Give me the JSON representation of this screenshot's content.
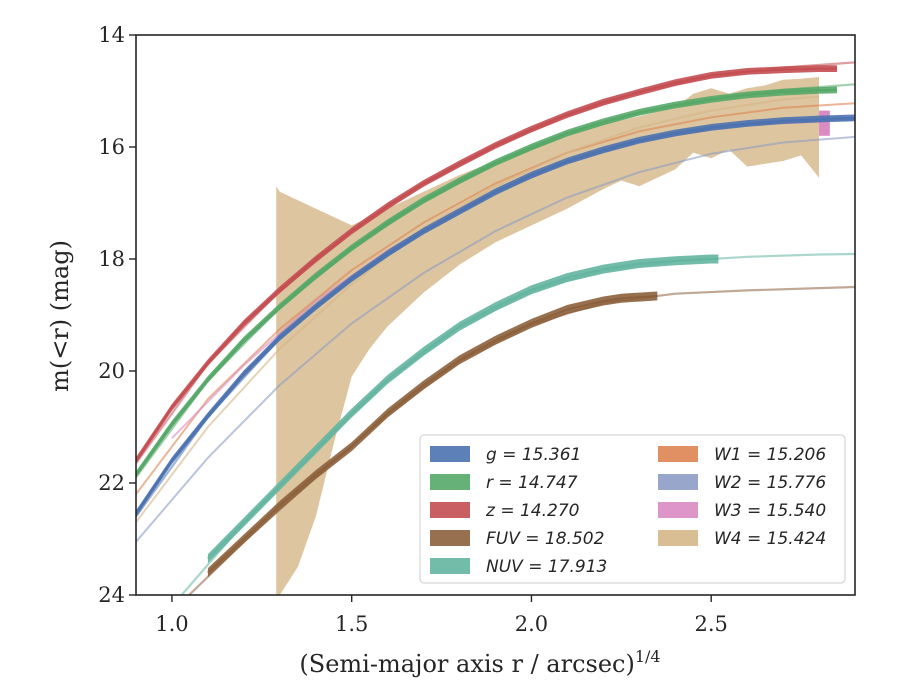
{
  "chart_data": {
    "type": "line",
    "xlabel": "(Semi-major axis r / arcsec)",
    "xlabel_sup": "1/4",
    "ylabel": "m(<r) (mag)",
    "xlim": [
      0.9,
      2.9
    ],
    "ylim": [
      24,
      14
    ],
    "y_inverted": true,
    "x_ticks": [
      1.0,
      1.5,
      2.0,
      2.5
    ],
    "x_tick_labels": [
      "1.0",
      "1.5",
      "2.0",
      "2.5"
    ],
    "y_ticks": [
      14,
      16,
      18,
      20,
      22,
      24
    ],
    "y_tick_labels": [
      "14",
      "16",
      "18",
      "20",
      "22",
      "24"
    ],
    "grid": false,
    "legend_placement": "lower-right",
    "series": [
      {
        "name": "g",
        "legend": "g = 15.361",
        "color": "#4c72b0",
        "band": {
          "x": [
            0.9,
            1.0,
            1.1,
            1.2,
            1.3,
            1.4,
            1.5,
            1.6,
            1.7,
            1.8,
            1.9,
            2.0,
            2.1,
            2.2,
            2.3,
            2.4,
            2.5,
            2.6,
            2.7,
            2.8,
            2.9
          ],
          "y": [
            22.55,
            21.6,
            20.8,
            20.05,
            19.4,
            18.85,
            18.35,
            17.9,
            17.5,
            17.15,
            16.8,
            16.5,
            16.25,
            16.05,
            15.88,
            15.75,
            15.65,
            15.58,
            15.53,
            15.5,
            15.48
          ],
          "half_width": 0.06
        },
        "model": {
          "x": [
            0.9,
            1.1,
            1.3,
            1.5,
            1.7,
            1.9,
            2.1,
            2.3,
            2.5,
            2.7,
            2.9
          ],
          "y": [
            22.6,
            20.82,
            19.42,
            18.37,
            17.52,
            16.82,
            16.27,
            15.9,
            15.67,
            15.55,
            15.5
          ]
        }
      },
      {
        "name": "r",
        "legend": "r = 14.747",
        "color": "#55a868",
        "band": {
          "x": [
            0.9,
            1.0,
            1.1,
            1.2,
            1.3,
            1.4,
            1.5,
            1.6,
            1.7,
            1.8,
            1.9,
            2.0,
            2.1,
            2.2,
            2.3,
            2.4,
            2.5,
            2.6,
            2.7,
            2.8,
            2.85
          ],
          "y": [
            21.85,
            20.95,
            20.15,
            19.45,
            18.85,
            18.3,
            17.8,
            17.35,
            16.95,
            16.6,
            16.28,
            16.0,
            15.75,
            15.55,
            15.38,
            15.25,
            15.15,
            15.07,
            15.02,
            14.99,
            14.98
          ],
          "half_width": 0.06
        },
        "model": {
          "x": [
            0.9,
            1.1,
            1.3,
            1.5,
            1.7,
            1.9,
            2.1,
            2.3,
            2.5,
            2.7,
            2.9
          ],
          "y": [
            21.9,
            20.17,
            18.87,
            17.82,
            16.97,
            16.3,
            15.78,
            15.4,
            15.15,
            14.98,
            14.88
          ]
        }
      },
      {
        "name": "z",
        "legend": "z = 14.270",
        "color": "#c44e52",
        "band": {
          "x": [
            0.9,
            1.0,
            1.1,
            1.2,
            1.3,
            1.4,
            1.5,
            1.6,
            1.7,
            1.8,
            1.9,
            2.0,
            2.1,
            2.2,
            2.3,
            2.4,
            2.5,
            2.6,
            2.7,
            2.8,
            2.85
          ],
          "y": [
            21.6,
            20.65,
            19.85,
            19.15,
            18.55,
            18.0,
            17.5,
            17.05,
            16.65,
            16.3,
            15.97,
            15.68,
            15.42,
            15.2,
            15.02,
            14.85,
            14.72,
            14.65,
            14.62,
            14.6,
            14.6
          ],
          "half_width": 0.06
        },
        "model": {
          "x": [
            0.9,
            1.1,
            1.3,
            1.5,
            1.7,
            1.9,
            2.1,
            2.3,
            2.5,
            2.7,
            2.9
          ],
          "y": [
            21.65,
            19.87,
            18.57,
            17.52,
            16.67,
            15.99,
            15.44,
            15.02,
            14.74,
            14.58,
            14.49
          ]
        }
      },
      {
        "name": "FUV",
        "legend": "FUV = 18.502",
        "color": "#8c613c",
        "band": {
          "x": [
            1.1,
            1.2,
            1.3,
            1.4,
            1.5,
            1.6,
            1.7,
            1.8,
            1.9,
            2.0,
            2.1,
            2.2,
            2.25,
            2.3,
            2.35
          ],
          "y": [
            23.6,
            23.0,
            22.4,
            21.85,
            21.35,
            20.75,
            20.25,
            19.8,
            19.45,
            19.15,
            18.9,
            18.75,
            18.7,
            18.68,
            18.66
          ],
          "half_width": 0.08
        },
        "model": {
          "x": [
            1.0,
            1.2,
            1.4,
            1.6,
            1.8,
            2.0,
            2.2,
            2.4,
            2.6,
            2.8,
            2.9
          ],
          "y": [
            24.3,
            23.05,
            21.9,
            20.78,
            19.82,
            19.17,
            18.78,
            18.62,
            18.56,
            18.52,
            18.5
          ]
        }
      },
      {
        "name": "NUV",
        "legend": "NUV = 17.913",
        "color": "#64b5a1",
        "band": {
          "x": [
            1.1,
            1.2,
            1.3,
            1.4,
            1.5,
            1.6,
            1.7,
            1.8,
            1.9,
            2.0,
            2.1,
            2.2,
            2.3,
            2.4,
            2.5,
            2.52
          ],
          "y": [
            23.35,
            22.7,
            22.05,
            21.4,
            20.75,
            20.15,
            19.65,
            19.2,
            18.85,
            18.55,
            18.33,
            18.18,
            18.08,
            18.03,
            18.0,
            18.0
          ],
          "half_width": 0.08
        },
        "model": {
          "x": [
            1.0,
            1.2,
            1.4,
            1.6,
            1.8,
            2.0,
            2.2,
            2.4,
            2.6,
            2.8,
            2.9
          ],
          "y": [
            24.2,
            22.72,
            21.42,
            20.17,
            19.22,
            18.57,
            18.2,
            18.04,
            17.96,
            17.92,
            17.91
          ]
        }
      },
      {
        "name": "W1",
        "legend": "W1 = 15.206",
        "color": "#dd8452",
        "model": {
          "x": [
            0.9,
            1.1,
            1.3,
            1.5,
            1.7,
            1.9,
            2.1,
            2.3,
            2.5,
            2.7,
            2.9
          ],
          "y": [
            22.2,
            20.5,
            19.25,
            18.2,
            17.35,
            16.65,
            16.1,
            15.72,
            15.47,
            15.3,
            15.22
          ]
        }
      },
      {
        "name": "W2",
        "legend": "W2 = 15.776",
        "color": "#8c9cc4",
        "model": {
          "x": [
            0.9,
            1.1,
            1.3,
            1.5,
            1.7,
            1.9,
            2.1,
            2.3,
            2.5,
            2.7,
            2.9
          ],
          "y": [
            23.05,
            21.55,
            20.25,
            19.15,
            18.25,
            17.5,
            16.9,
            16.45,
            16.12,
            15.92,
            15.82
          ]
        }
      },
      {
        "name": "W3",
        "legend": "W3 = 15.540",
        "color": "#da8bc3",
        "model": {
          "x": [
            1.0,
            1.2,
            1.4,
            1.6,
            1.8,
            2.0,
            2.2,
            2.4,
            2.6,
            2.8
          ],
          "y": [
            21.2,
            19.9,
            18.75,
            17.85,
            17.1,
            16.5,
            16.05,
            15.75,
            15.6,
            15.55
          ]
        },
        "marker": {
          "x": [
            2.8,
            2.83
          ],
          "y": [
            15.35,
            15.8
          ]
        }
      },
      {
        "name": "W4",
        "legend": "W4 = 15.424",
        "color": "#d5b687",
        "model": {
          "x": [
            0.9,
            1.1,
            1.3,
            1.5,
            1.7,
            1.9,
            2.1,
            2.3,
            2.5,
            2.7,
            2.8
          ],
          "y": [
            22.7,
            21.0,
            19.6,
            18.45,
            17.45,
            16.7,
            16.1,
            15.65,
            15.35,
            15.15,
            15.1
          ]
        },
        "band_upper": {
          "x": [
            1.29,
            1.3,
            1.4,
            1.5,
            1.6,
            1.7,
            1.8,
            1.9,
            2.0,
            2.1,
            2.2,
            2.3,
            2.4,
            2.45,
            2.5,
            2.55,
            2.6,
            2.65,
            2.7,
            2.75,
            2.8
          ],
          "y": [
            16.7,
            16.8,
            17.1,
            17.4,
            17.1,
            16.8,
            16.5,
            16.25,
            16.0,
            15.8,
            15.6,
            15.45,
            15.3,
            15.05,
            14.95,
            15.05,
            14.95,
            14.9,
            14.8,
            14.78,
            14.75
          ]
        },
        "band_lower": {
          "x": [
            1.29,
            1.3,
            1.35,
            1.4,
            1.45,
            1.5,
            1.55,
            1.6,
            1.7,
            1.8,
            1.9,
            2.0,
            2.1,
            2.2,
            2.25,
            2.3,
            2.35,
            2.4,
            2.45,
            2.5,
            2.55,
            2.6,
            2.65,
            2.7,
            2.75,
            2.8
          ],
          "y": [
            24.0,
            24.0,
            23.5,
            22.6,
            21.3,
            20.1,
            19.6,
            19.2,
            18.6,
            18.1,
            17.7,
            17.4,
            17.1,
            16.75,
            16.6,
            16.7,
            16.55,
            16.4,
            16.1,
            16.2,
            16.05,
            16.35,
            16.3,
            16.25,
            16.15,
            16.55
          ]
        }
      }
    ]
  }
}
